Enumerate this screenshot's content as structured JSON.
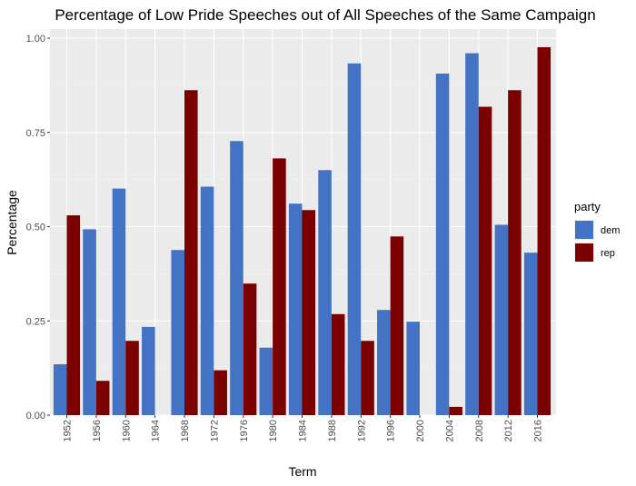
{
  "chart_data": {
    "type": "bar",
    "title": "Percentage of Low Pride Speeches out of All Speeches of the Same Campaign",
    "xlabel": "Term",
    "ylabel": "Percentage",
    "categories": [
      "1952",
      "1956",
      "1960",
      "1964",
      "1968",
      "1972",
      "1976",
      "1980",
      "1984",
      "1988",
      "1992",
      "1996",
      "2000",
      "2004",
      "2008",
      "2012",
      "2016"
    ],
    "ylim": [
      0,
      1.0
    ],
    "yticks": [
      0.0,
      0.25,
      0.5,
      0.75,
      1.0
    ],
    "ytick_labels": [
      "0.00",
      "0.25",
      "0.50",
      "0.75",
      "1.00"
    ],
    "grid": true,
    "legend": {
      "title": "party",
      "position": "right"
    },
    "series": [
      {
        "name": "dem",
        "color": "#4472C4",
        "values": [
          0.135,
          0.493,
          0.601,
          0.234,
          0.438,
          0.606,
          0.727,
          0.179,
          0.561,
          0.65,
          0.933,
          0.279,
          0.248,
          0.906,
          0.96,
          0.505,
          0.431
        ]
      },
      {
        "name": "rep",
        "color": "#7B0000",
        "values": [
          0.53,
          0.091,
          0.197,
          null,
          0.862,
          0.119,
          0.349,
          0.681,
          0.544,
          0.268,
          0.197,
          0.474,
          null,
          0.022,
          0.818,
          0.862,
          0.976
        ]
      }
    ]
  }
}
